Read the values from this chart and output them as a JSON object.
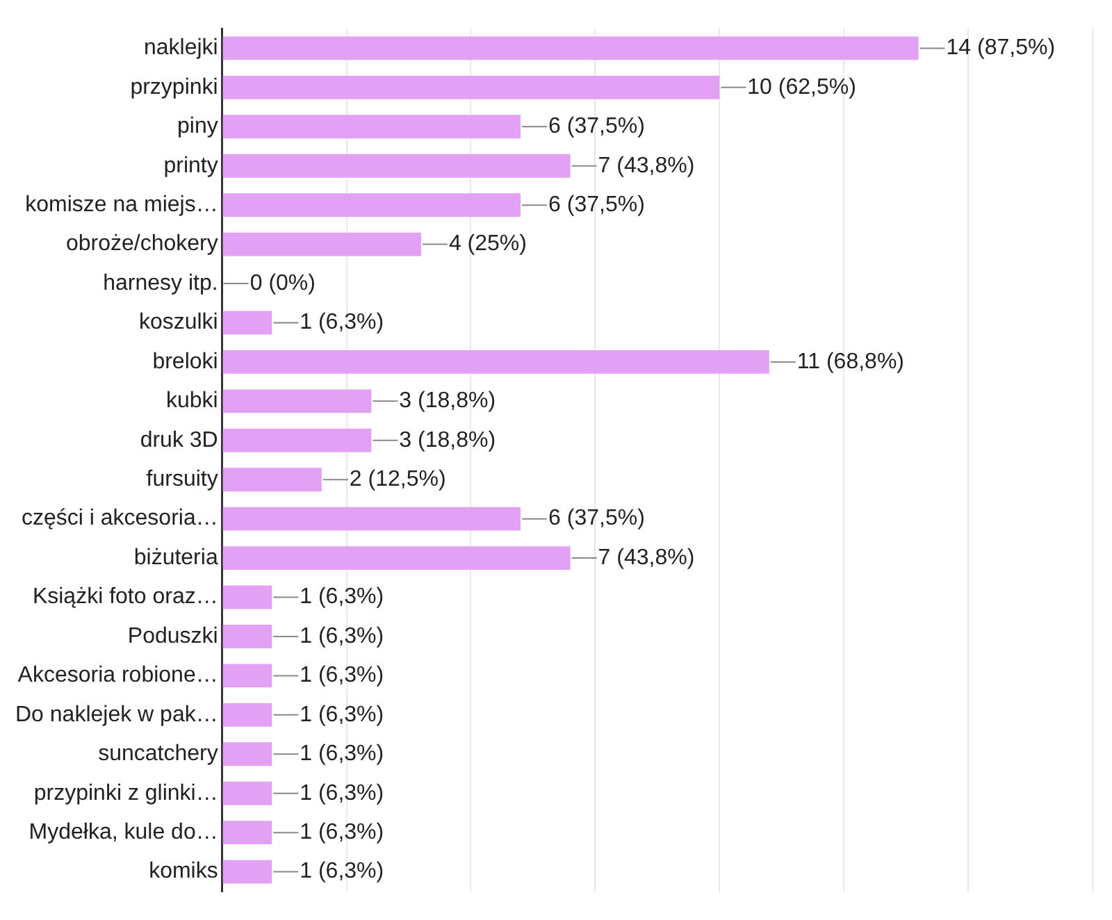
{
  "chart_data": {
    "type": "bar",
    "orientation": "horizontal",
    "color": "#e3a1f6",
    "categories": [
      "naklejki",
      "przypinki",
      "piny",
      "printy",
      "komisze na miejs…",
      "obroże/chokery",
      "harnesy itp.",
      "koszulki",
      "breloki",
      "kubki",
      "druk 3D",
      "fursuity",
      "części i akcesoria…",
      "biżuteria",
      "Książki foto oraz…",
      "Poduszki",
      "Akcesoria robione…",
      "Do naklejek w pak…",
      "suncatchery",
      "przypinki z glinki…",
      "Mydełka, kule do…",
      "komiks"
    ],
    "values": [
      14,
      10,
      6,
      7,
      6,
      4,
      0,
      1,
      11,
      3,
      3,
      2,
      6,
      7,
      1,
      1,
      1,
      1,
      1,
      1,
      1,
      1
    ],
    "value_labels": [
      "14 (87,5%)",
      "10 (62,5%)",
      "6 (37,5%)",
      "7 (43,8%)",
      "6 (37,5%)",
      "4 (25%)",
      "0 (0%)",
      "1 (6,3%)",
      "11 (68,8%)",
      "3 (18,8%)",
      "3 (18,8%)",
      "2 (12,5%)",
      "6 (37,5%)",
      "7 (43,8%)",
      "1 (6,3%)",
      "1 (6,3%)",
      "1 (6,3%)",
      "1 (6,3%)",
      "1 (6,3%)",
      "1 (6,3%)",
      "1 (6,3%)",
      "1 (6,3%)"
    ],
    "xlim": [
      0,
      17.5
    ],
    "xticks": [
      {
        "value": 0,
        "label": null
      },
      {
        "value": 2.5,
        "label": null
      },
      {
        "value": 5,
        "label": null
      },
      {
        "value": 7.5,
        "label": null
      },
      {
        "value": 10,
        "label": null
      },
      {
        "value": 12.5,
        "label": null
      },
      {
        "value": 15,
        "label": null
      },
      {
        "value": 17.5,
        "label": null
      }
    ],
    "grid": "x",
    "tick_labels": "y"
  }
}
